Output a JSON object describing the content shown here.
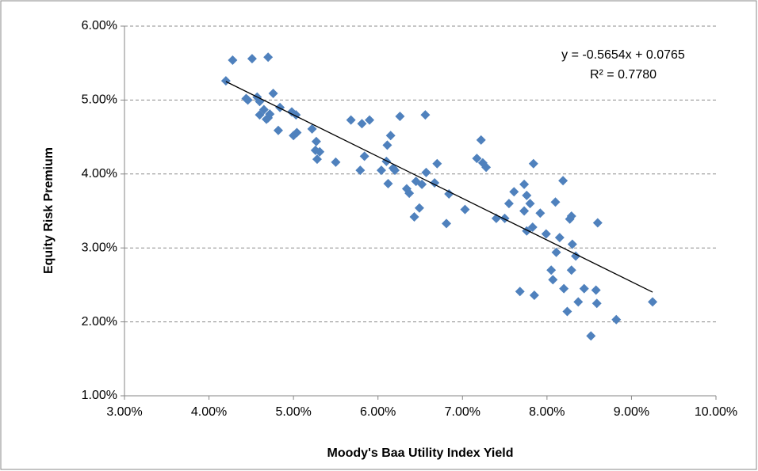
{
  "chart_data": {
    "type": "scatter",
    "x_label": "Moody's Baa Utility Index Yield",
    "y_label": "Equity Risk Premium",
    "annotations": [
      "y = -0.5654x + 0.0765",
      "R² = 0.7780"
    ],
    "color": "#4f81bd",
    "trendline": true,
    "grid": true,
    "xlim": [
      3,
      10
    ],
    "ylim": [
      1,
      6
    ],
    "xticks": [
      {
        "value": 3,
        "label": "3.00%"
      },
      {
        "value": 4,
        "label": "4.00%"
      },
      {
        "value": 5,
        "label": "5.00%"
      },
      {
        "value": 6,
        "label": "6.00%"
      },
      {
        "value": 7,
        "label": "7.00%"
      },
      {
        "value": 8,
        "label": "8.00%"
      },
      {
        "value": 9,
        "label": "9.00%"
      },
      {
        "value": 10,
        "label": "10.00%"
      }
    ],
    "yticks": [
      {
        "value": 1,
        "label": "1.00%"
      },
      {
        "value": 2,
        "label": "2.00%"
      },
      {
        "value": 3,
        "label": "3.00%"
      },
      {
        "value": 4,
        "label": "4.00%"
      },
      {
        "value": 5,
        "label": "5.00%"
      },
      {
        "value": 6,
        "label": "6.00%"
      }
    ],
    "x": [
      4.2,
      4.28,
      4.51,
      4.7,
      4.44,
      4.46,
      4.57,
      4.6,
      4.6,
      4.65,
      4.72,
      4.76,
      4.7,
      4.68,
      4.84,
      4.82,
      4.98,
      5.03,
      5.04,
      5.0,
      5.22,
      5.27,
      5.31,
      5.26,
      5.28,
      5.5,
      5.68,
      5.81,
      5.9,
      5.79,
      5.84,
      6.11,
      6.15,
      6.26,
      6.56,
      6.1,
      6.04,
      6.12,
      6.18,
      6.2,
      6.34,
      6.37,
      6.43,
      6.49,
      6.45,
      6.52,
      6.57,
      6.67,
      6.7,
      6.81,
      6.84,
      7.03,
      7.17,
      7.22,
      7.24,
      7.28,
      7.4,
      7.5,
      7.55,
      7.61,
      7.73,
      7.76,
      7.73,
      7.8,
      7.76,
      7.83,
      7.84,
      7.92,
      7.99,
      8.1,
      8.15,
      8.19,
      8.27,
      8.29,
      8.3,
      8.34,
      8.11,
      8.05,
      8.07,
      8.29,
      7.68,
      7.85,
      8.2,
      8.24,
      8.37,
      8.44,
      8.58,
      8.59,
      8.6,
      8.52,
      8.82,
      9.25
    ],
    "values": [
      5.26,
      5.54,
      5.56,
      5.58,
      5.02,
      5.0,
      5.04,
      4.98,
      4.8,
      4.87,
      4.81,
      5.09,
      4.76,
      4.74,
      4.9,
      4.59,
      4.84,
      4.8,
      4.56,
      4.52,
      4.61,
      4.44,
      4.3,
      4.32,
      4.2,
      4.16,
      4.73,
      4.68,
      4.73,
      4.05,
      4.24,
      4.39,
      4.52,
      4.78,
      4.8,
      4.17,
      4.05,
      3.87,
      4.08,
      4.05,
      3.8,
      3.74,
      3.42,
      3.54,
      3.9,
      3.86,
      4.02,
      3.88,
      4.14,
      3.33,
      3.73,
      3.52,
      4.21,
      4.46,
      4.15,
      4.09,
      3.4,
      3.4,
      3.6,
      3.76,
      3.86,
      3.71,
      3.5,
      3.6,
      3.23,
      3.28,
      4.14,
      3.47,
      3.19,
      3.62,
      3.14,
      3.91,
      3.39,
      3.43,
      3.05,
      2.89,
      2.94,
      2.7,
      2.57,
      2.7,
      2.41,
      2.36,
      2.45,
      2.14,
      2.27,
      2.45,
      2.43,
      2.25,
      3.34,
      1.81,
      2.03,
      2.27
    ]
  }
}
